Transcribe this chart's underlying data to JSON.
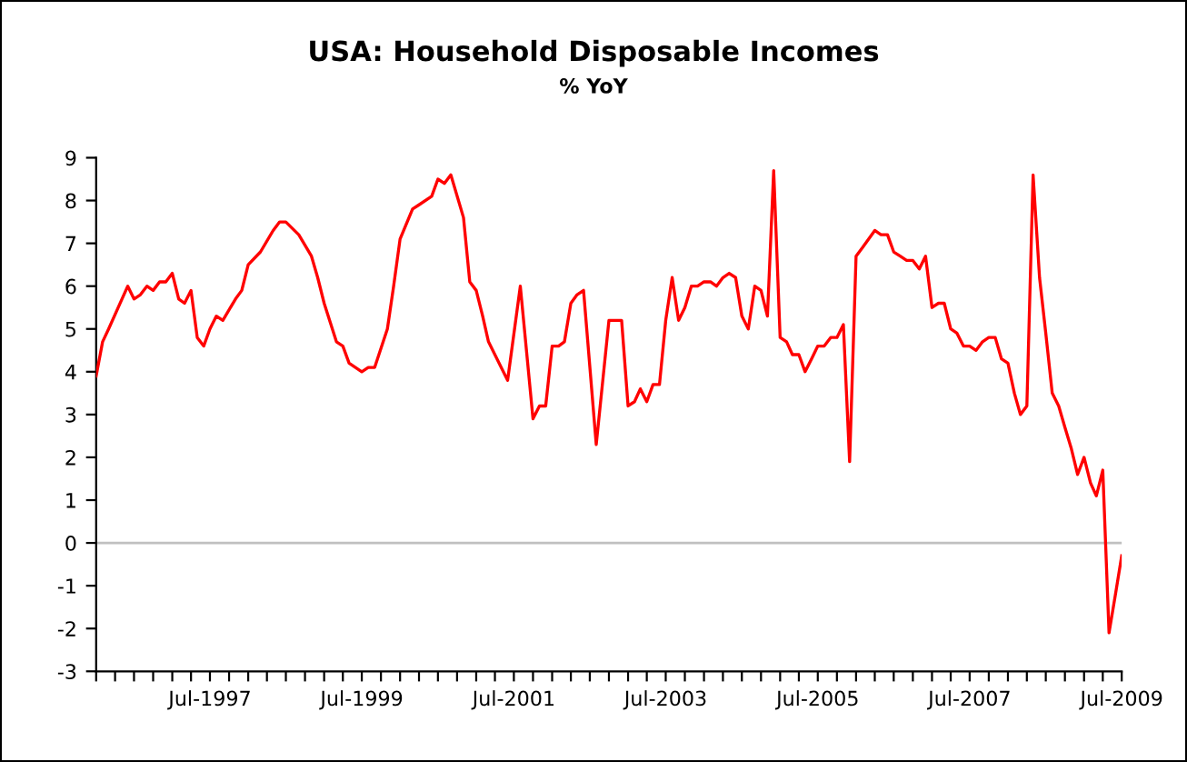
{
  "chart_data": {
    "type": "line",
    "title": "USA: Household Disposable Incomes",
    "subtitle": "% YoY",
    "x": [
      "1996-01",
      "1996-02",
      "1996-03",
      "1996-06",
      "1996-07",
      "1996-08",
      "1996-09",
      "1996-10",
      "1996-11",
      "1996-12",
      "1997-01",
      "1997-02",
      "1997-03",
      "1997-04",
      "1997-05",
      "1997-06",
      "1997-07",
      "1997-08",
      "1997-09",
      "1997-11",
      "1997-12",
      "1998-01",
      "1998-03",
      "1998-05",
      "1998-06",
      "1998-07",
      "1998-09",
      "1998-11",
      "1998-12",
      "1999-01",
      "1999-03",
      "1999-04",
      "1999-05",
      "1999-07",
      "1999-08",
      "1999-09",
      "1999-11",
      "1999-12",
      "2000-01",
      "2000-03",
      "2000-04",
      "2000-06",
      "2000-07",
      "2000-08",
      "2000-09",
      "2000-11",
      "2000-12",
      "2001-01",
      "2001-02",
      "2001-03",
      "2001-05",
      "2001-06",
      "2001-08",
      "2001-10",
      "2001-11",
      "2001-12",
      "2002-01",
      "2002-02",
      "2002-03",
      "2002-04",
      "2002-05",
      "2002-06",
      "2002-08",
      "2002-10",
      "2002-11",
      "2002-12",
      "2003-01",
      "2003-02",
      "2003-03",
      "2003-04",
      "2003-05",
      "2003-06",
      "2003-07",
      "2003-08",
      "2003-09",
      "2003-10",
      "2003-11",
      "2003-12",
      "2004-01",
      "2004-02",
      "2004-03",
      "2004-04",
      "2004-05",
      "2004-06",
      "2004-07",
      "2004-08",
      "2004-09",
      "2004-10",
      "2004-11",
      "2004-12",
      "2005-01",
      "2005-02",
      "2005-03",
      "2005-04",
      "2005-05",
      "2005-06",
      "2005-07",
      "2005-08",
      "2005-09",
      "2005-10",
      "2005-11",
      "2005-12",
      "2006-01",
      "2006-02",
      "2006-04",
      "2006-05",
      "2006-06",
      "2006-07",
      "2006-08",
      "2006-09",
      "2006-10",
      "2006-11",
      "2006-12",
      "2007-01",
      "2007-02",
      "2007-03",
      "2007-04",
      "2007-05",
      "2007-06",
      "2007-07",
      "2007-08",
      "2007-09",
      "2007-10",
      "2007-11",
      "2007-12",
      "2008-01",
      "2008-02",
      "2008-03",
      "2008-04",
      "2008-05",
      "2008-06",
      "2008-07",
      "2008-08",
      "2008-09",
      "2008-10",
      "2008-11",
      "2008-12",
      "2009-01",
      "2009-02",
      "2009-03",
      "2009-04",
      "2009-05",
      "2009-06",
      "2009-07"
    ],
    "series": [
      {
        "color": "#ff0000",
        "values": [
          3.9,
          4.7,
          5.0,
          6.0,
          5.7,
          5.8,
          6.0,
          5.9,
          6.1,
          6.1,
          6.3,
          5.7,
          5.6,
          5.9,
          4.8,
          4.6,
          5.0,
          5.3,
          5.2,
          5.7,
          5.9,
          6.5,
          6.8,
          7.3,
          7.5,
          7.5,
          7.2,
          6.7,
          6.2,
          5.6,
          4.7,
          4.6,
          4.2,
          4.0,
          4.1,
          4.1,
          5.0,
          6.0,
          7.1,
          7.8,
          7.9,
          8.1,
          8.5,
          8.4,
          8.6,
          7.6,
          6.1,
          5.9,
          5.3,
          4.7,
          4.1,
          3.8,
          6.0,
          2.9,
          3.2,
          3.2,
          4.6,
          4.6,
          4.7,
          5.6,
          5.8,
          5.9,
          2.3,
          5.2,
          5.2,
          5.2,
          3.2,
          3.3,
          3.6,
          3.3,
          3.7,
          3.7,
          5.2,
          6.2,
          5.2,
          5.5,
          6.0,
          6.0,
          6.1,
          6.1,
          6.0,
          6.2,
          6.3,
          6.2,
          5.3,
          5.0,
          6.0,
          5.9,
          5.3,
          8.7,
          4.8,
          4.7,
          4.4,
          4.4,
          4.0,
          4.3,
          4.6,
          4.6,
          4.8,
          4.8,
          5.1,
          1.9,
          6.7,
          6.9,
          7.3,
          7.2,
          7.2,
          6.8,
          6.7,
          6.6,
          6.6,
          6.4,
          6.7,
          5.5,
          5.6,
          5.6,
          5.0,
          4.9,
          4.6,
          4.6,
          4.5,
          4.7,
          4.8,
          4.8,
          4.3,
          4.2,
          3.5,
          3.0,
          3.2,
          8.6,
          6.2,
          4.9,
          3.5,
          3.2,
          2.7,
          2.2,
          1.6,
          2.0,
          1.4,
          1.1,
          1.7,
          -2.1,
          -1.2,
          -0.3
        ]
      }
    ],
    "xlim": [
      "1996-01",
      "2009-07"
    ],
    "xticks": [
      {
        "value": "1996-01",
        "label": null
      },
      {
        "value": "1996-04",
        "label": null
      },
      {
        "value": "1996-07",
        "label": null
      },
      {
        "value": "1996-10",
        "label": null
      },
      {
        "value": "1997-01",
        "label": null
      },
      {
        "value": "1997-04",
        "label": null
      },
      {
        "value": "1997-07",
        "label": "Jul-1997"
      },
      {
        "value": "1997-10",
        "label": null
      },
      {
        "value": "1998-01",
        "label": null
      },
      {
        "value": "1998-04",
        "label": null
      },
      {
        "value": "1998-07",
        "label": null
      },
      {
        "value": "1998-10",
        "label": null
      },
      {
        "value": "1999-01",
        "label": null
      },
      {
        "value": "1999-04",
        "label": null
      },
      {
        "value": "1999-07",
        "label": "Jul-1999"
      },
      {
        "value": "1999-10",
        "label": null
      },
      {
        "value": "2000-01",
        "label": null
      },
      {
        "value": "2000-04",
        "label": null
      },
      {
        "value": "2000-07",
        "label": null
      },
      {
        "value": "2000-10",
        "label": null
      },
      {
        "value": "2001-01",
        "label": null
      },
      {
        "value": "2001-04",
        "label": null
      },
      {
        "value": "2001-07",
        "label": "Jul-2001"
      },
      {
        "value": "2001-10",
        "label": null
      },
      {
        "value": "2002-01",
        "label": null
      },
      {
        "value": "2002-04",
        "label": null
      },
      {
        "value": "2002-07",
        "label": null
      },
      {
        "value": "2002-10",
        "label": null
      },
      {
        "value": "2003-01",
        "label": null
      },
      {
        "value": "2003-04",
        "label": null
      },
      {
        "value": "2003-07",
        "label": "Jul-2003"
      },
      {
        "value": "2003-10",
        "label": null
      },
      {
        "value": "2004-01",
        "label": null
      },
      {
        "value": "2004-04",
        "label": null
      },
      {
        "value": "2004-07",
        "label": null
      },
      {
        "value": "2004-10",
        "label": null
      },
      {
        "value": "2005-01",
        "label": null
      },
      {
        "value": "2005-04",
        "label": null
      },
      {
        "value": "2005-07",
        "label": "Jul-2005"
      },
      {
        "value": "2005-10",
        "label": null
      },
      {
        "value": "2006-01",
        "label": null
      },
      {
        "value": "2006-04",
        "label": null
      },
      {
        "value": "2006-07",
        "label": null
      },
      {
        "value": "2006-10",
        "label": null
      },
      {
        "value": "2007-01",
        "label": null
      },
      {
        "value": "2007-04",
        "label": null
      },
      {
        "value": "2007-07",
        "label": "Jul-2007"
      },
      {
        "value": "2007-10",
        "label": null
      },
      {
        "value": "2008-01",
        "label": null
      },
      {
        "value": "2008-04",
        "label": null
      },
      {
        "value": "2008-07",
        "label": null
      },
      {
        "value": "2008-10",
        "label": null
      },
      {
        "value": "2009-01",
        "label": null
      },
      {
        "value": "2009-04",
        "label": null
      },
      {
        "value": "2009-07",
        "label": "Jul-2009"
      }
    ],
    "ylim": [
      -3,
      9
    ],
    "yticks": [
      -3,
      -2,
      -1,
      0,
      1,
      2,
      3,
      4,
      5,
      6,
      7,
      8,
      9
    ],
    "ref_lines": [
      {
        "axis": "y",
        "value": 0,
        "color": "#c0c0c0"
      }
    ],
    "grid": false,
    "marker": "none",
    "line_style": "solid"
  }
}
